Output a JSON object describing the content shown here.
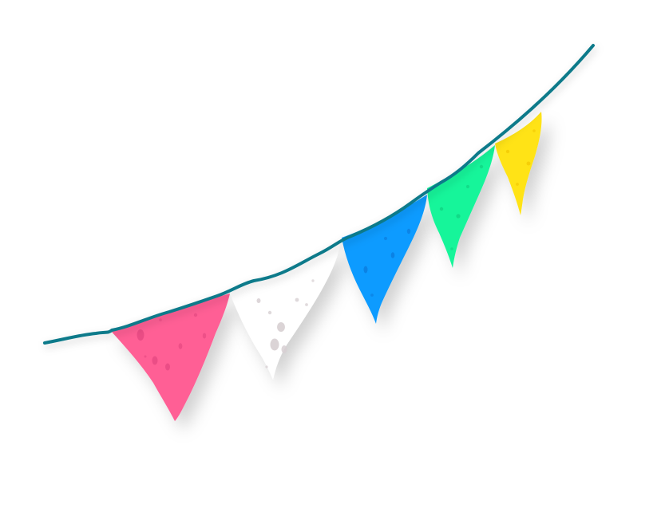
{
  "illustration": {
    "subject": "bunting-garland",
    "string_color": "#0a7a8a",
    "pennants": [
      {
        "name": "pink",
        "color": "#ff5f95"
      },
      {
        "name": "white",
        "color": "#ffffff"
      },
      {
        "name": "blue",
        "color": "#0a9bff"
      },
      {
        "name": "green",
        "color": "#17f59a"
      },
      {
        "name": "yellow",
        "color": "#ffe314"
      }
    ]
  }
}
